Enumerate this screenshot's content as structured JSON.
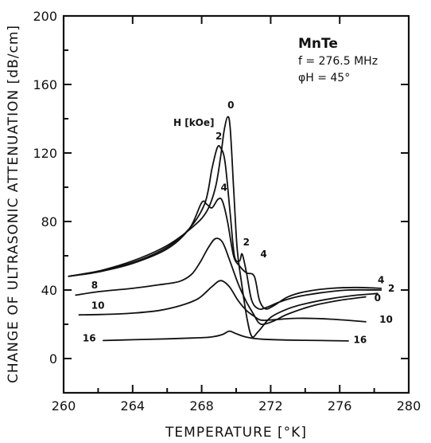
{
  "chart_data": {
    "type": "line",
    "title": "",
    "xlabel": "TEMPERATURE [°K]",
    "ylabel": "CHANGE OF ULTRASONIC ATTENUATION [dB/cm]",
    "xlim": [
      260,
      280
    ],
    "ylim": [
      -20,
      200
    ],
    "x_ticks": [
      "260",
      "264",
      "268",
      "272",
      "276",
      "280"
    ],
    "y_ticks": [
      "0",
      "40",
      "80",
      "120",
      "160",
      "200"
    ],
    "grid": false,
    "annotations": {
      "material": "MnTe",
      "frequency": "f = 276.5 MHz",
      "angle": "φH = 45°",
      "field_unit": "H [kOe]"
    },
    "series": [
      {
        "name": "0",
        "points": [
          [
            260.3,
            48
          ],
          [
            262,
            51
          ],
          [
            264,
            57
          ],
          [
            266,
            66
          ],
          [
            267.5,
            77
          ],
          [
            268.3,
            86
          ],
          [
            268.8,
            100
          ],
          [
            269.1,
            118
          ],
          [
            269.3,
            133
          ],
          [
            269.5,
            141
          ],
          [
            269.65,
            135
          ],
          [
            269.85,
            100
          ],
          [
            270.05,
            65
          ],
          [
            270.3,
            45
          ],
          [
            270.6,
            25
          ],
          [
            270.9,
            13
          ],
          [
            271.3,
            16
          ],
          [
            272,
            24
          ],
          [
            273,
            29
          ],
          [
            274,
            32
          ],
          [
            275.5,
            35
          ],
          [
            277,
            37
          ],
          [
            278.2,
            38
          ]
        ]
      },
      {
        "name": "2",
        "points": [
          [
            260.3,
            48
          ],
          [
            262,
            51
          ],
          [
            264,
            56
          ],
          [
            266,
            65
          ],
          [
            267.3,
            76
          ],
          [
            268.2,
            91
          ],
          [
            268.6,
            111
          ],
          [
            268.9,
            123
          ],
          [
            269.1,
            123
          ],
          [
            269.35,
            115
          ],
          [
            269.65,
            85
          ],
          [
            269.9,
            60
          ],
          [
            270.2,
            57
          ],
          [
            270.35,
            61
          ],
          [
            270.6,
            50
          ],
          [
            270.9,
            34
          ],
          [
            271.3,
            29
          ],
          [
            271.8,
            30
          ],
          [
            272.5,
            33
          ],
          [
            273.5,
            36
          ],
          [
            275,
            38.5
          ],
          [
            276.5,
            40
          ],
          [
            278.4,
            40
          ]
        ]
      },
      {
        "name": "4",
        "points": [
          [
            260.3,
            48
          ],
          [
            262,
            50.5
          ],
          [
            264,
            55.5
          ],
          [
            266,
            64
          ],
          [
            267.3,
            76
          ],
          [
            268.0,
            91
          ],
          [
            268.3,
            90
          ],
          [
            268.6,
            88
          ],
          [
            268.95,
            93
          ],
          [
            269.2,
            92
          ],
          [
            269.5,
            80
          ],
          [
            269.85,
            60
          ],
          [
            270.2,
            54
          ],
          [
            270.6,
            50
          ],
          [
            271.05,
            48
          ],
          [
            271.35,
            34
          ],
          [
            271.7,
            29
          ],
          [
            272.2,
            31
          ],
          [
            273,
            36
          ],
          [
            274,
            39
          ],
          [
            275.5,
            41
          ],
          [
            277,
            41.5
          ],
          [
            278.4,
            41
          ]
        ]
      },
      {
        "name": "8",
        "points": [
          [
            260.7,
            37
          ],
          [
            262,
            39
          ],
          [
            264,
            41
          ],
          [
            265.5,
            43
          ],
          [
            266.7,
            45
          ],
          [
            267.4,
            49
          ],
          [
            267.9,
            56
          ],
          [
            268.4,
            65
          ],
          [
            268.8,
            70
          ],
          [
            269.2,
            68
          ],
          [
            269.6,
            58
          ],
          [
            270.1,
            44
          ],
          [
            270.6,
            33
          ],
          [
            271.0,
            26
          ],
          [
            271.3,
            21
          ],
          [
            271.6,
            20
          ],
          [
            272.2,
            22
          ],
          [
            273,
            26
          ],
          [
            274.5,
            31
          ],
          [
            276,
            34
          ],
          [
            277.5,
            36
          ]
        ]
      },
      {
        "name": "10",
        "points": [
          [
            260.9,
            25.5
          ],
          [
            262.5,
            25.8
          ],
          [
            264,
            26.5
          ],
          [
            265.5,
            28
          ],
          [
            266.8,
            31
          ],
          [
            267.8,
            35
          ],
          [
            268.6,
            42
          ],
          [
            269.1,
            45.5
          ],
          [
            269.6,
            42
          ],
          [
            270.1,
            34
          ],
          [
            270.6,
            28
          ],
          [
            271.0,
            25
          ],
          [
            271.4,
            22.5
          ],
          [
            272,
            22.5
          ],
          [
            273.5,
            23.5
          ],
          [
            275.5,
            23
          ],
          [
            277.5,
            21.5
          ]
        ]
      },
      {
        "name": "16",
        "points": [
          [
            262.3,
            10.5
          ],
          [
            264,
            11
          ],
          [
            266,
            11.5
          ],
          [
            267.5,
            12
          ],
          [
            268.5,
            12.5
          ],
          [
            269.2,
            14
          ],
          [
            269.6,
            16
          ],
          [
            270.0,
            14.5
          ],
          [
            270.6,
            12.5
          ],
          [
            271.5,
            11.3
          ],
          [
            273,
            10.8
          ],
          [
            275,
            10.5
          ],
          [
            276.5,
            10.3
          ]
        ]
      }
    ],
    "curve_labels": [
      {
        "text": "0",
        "x": 269.5,
        "y": 146
      },
      {
        "text": "2",
        "x": 268.8,
        "y": 128
      },
      {
        "text": "4",
        "x": 269.1,
        "y": 98
      },
      {
        "text": "2",
        "x": 270.4,
        "y": 66
      },
      {
        "text": "4",
        "x": 271.4,
        "y": 59
      },
      {
        "text": "8",
        "x": 261.6,
        "y": 41
      },
      {
        "text": "10",
        "x": 261.6,
        "y": 29
      },
      {
        "text": "16",
        "x": 261.1,
        "y": 10
      },
      {
        "text": "4",
        "x": 278.2,
        "y": 44
      },
      {
        "text": "2",
        "x": 278.8,
        "y": 39
      },
      {
        "text": "0",
        "x": 278.0,
        "y": 33.5
      },
      {
        "text": "10",
        "x": 278.3,
        "y": 21
      },
      {
        "text": "16",
        "x": 276.8,
        "y": 9
      }
    ]
  }
}
